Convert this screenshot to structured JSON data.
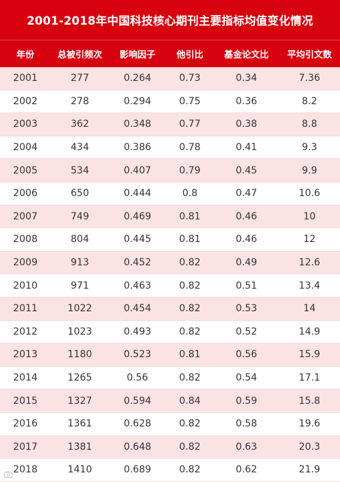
{
  "title": "2001-2018年中国科技核心期刊主要指标均值变化情况",
  "columns": [
    "年份",
    "总被引频次",
    "影响因子",
    "他引比",
    "基金论文比",
    "平均引文数"
  ],
  "rows": [
    [
      "2001",
      "277",
      "0.264",
      "0.73",
      "0.34",
      "7.36"
    ],
    [
      "2002",
      "278",
      "0.294",
      "0.75",
      "0.36",
      "8.2"
    ],
    [
      "2003",
      "362",
      "0.348",
      "0.77",
      "0.38",
      "8.8"
    ],
    [
      "2004",
      "434",
      "0.386",
      "0.78",
      "0.41",
      "9.3"
    ],
    [
      "2005",
      "534",
      "0.407",
      "0.79",
      "0.45",
      "9.9"
    ],
    [
      "2006",
      "650",
      "0.444",
      "0.8",
      "0.47",
      "10.6"
    ],
    [
      "2007",
      "749",
      "0.469",
      "0.81",
      "0.46",
      "10"
    ],
    [
      "2008",
      "804",
      "0.445",
      "0.81",
      "0.46",
      "12"
    ],
    [
      "2009",
      "913",
      "0.452",
      "0.82",
      "0.49",
      "12.6"
    ],
    [
      "2010",
      "971",
      "0.463",
      "0.82",
      "0.51",
      "13.4"
    ],
    [
      "2011",
      "1022",
      "0.454",
      "0.82",
      "0.53",
      "14"
    ],
    [
      "2012",
      "1023",
      "0.493",
      "0.82",
      "0.52",
      "14.9"
    ],
    [
      "2013",
      "1180",
      "0.523",
      "0.81",
      "0.56",
      "15.9"
    ],
    [
      "2014",
      "1265",
      "0.56",
      "0.82",
      "0.54",
      "17.1"
    ],
    [
      "2015",
      "1327",
      "0.594",
      "0.84",
      "0.59",
      "15.8"
    ],
    [
      "2016",
      "1361",
      "0.628",
      "0.82",
      "0.58",
      "19.6"
    ],
    [
      "2017",
      "1381",
      "0.648",
      "0.82",
      "0.63",
      "20.3"
    ],
    [
      "2018",
      "1410",
      "0.689",
      "0.82",
      "0.62",
      "21.9"
    ]
  ],
  "colors": {
    "header_bg": "#d7000f",
    "stripe_bg": "#fbe3e4"
  },
  "watermark_icon": "camera-icon"
}
